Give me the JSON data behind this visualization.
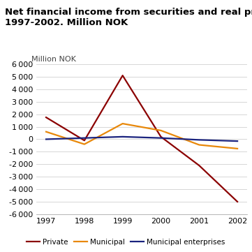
{
  "title_line1": "Net financial income from securities and real property.",
  "title_line2": "1997-2002. Million NOK",
  "ylabel": "Million NOK",
  "years": [
    1997,
    1998,
    1999,
    2000,
    2001,
    2002
  ],
  "private": [
    1750,
    -100,
    5100,
    200,
    -2100,
    -5000
  ],
  "municipal": [
    600,
    -400,
    1250,
    700,
    -450,
    -750
  ],
  "municipal_enterprises": [
    0,
    100,
    200,
    100,
    -50,
    -150
  ],
  "private_color": "#8B0000",
  "municipal_color": "#E8880A",
  "municipal_enterprises_color": "#1A237E",
  "ylim": [
    -6000,
    6000
  ],
  "yticks": [
    -6000,
    -5000,
    -4000,
    -3000,
    -2000,
    -1000,
    0,
    1000,
    2000,
    3000,
    4000,
    5000,
    6000
  ],
  "background_color": "#ffffff",
  "title_bar_color": "#5BC8C8",
  "grid_color": "#d0d0d0",
  "legend_labels": [
    "Private",
    "Municipal",
    "Municipal enterprises"
  ],
  "title_fontsize": 9.5,
  "label_fontsize": 8,
  "tick_fontsize": 8,
  "linewidth": 1.6
}
